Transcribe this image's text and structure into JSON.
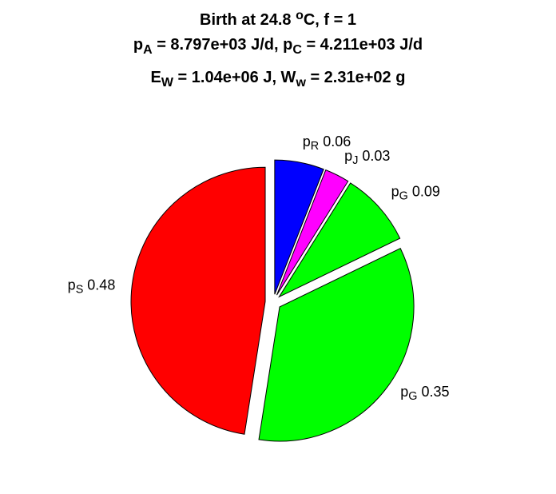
{
  "chart_data": {
    "type": "pie",
    "title": [
      [
        {
          "t": "Birth at 24.8 "
        },
        {
          "t": "o",
          "s": "sup"
        },
        {
          "t": "C, f = 1"
        }
      ],
      [
        {
          "t": "p"
        },
        {
          "t": "A",
          "s": "sub"
        },
        {
          "t": " = 8.797e+03 J/d, p"
        },
        {
          "t": "C",
          "s": "sub"
        },
        {
          "t": " = 4.211e+03 J/d"
        }
      ],
      [
        {
          "t": "E"
        },
        {
          "t": "W",
          "s": "sub"
        },
        {
          "t": " = 1.04e+06 J, W"
        },
        {
          "t": "w",
          "s": "sub"
        },
        {
          "t": " = 2.31e+02 g"
        }
      ]
    ],
    "categories": [
      {
        "main": "p",
        "sub": "R"
      },
      {
        "main": "p",
        "sub": "J"
      },
      {
        "main": "p",
        "sub": "G"
      },
      {
        "main": "p",
        "sub": "G"
      },
      {
        "main": "p",
        "sub": "S"
      }
    ],
    "values": [
      0.06,
      0.03,
      0.09,
      0.35,
      0.48
    ],
    "colors": [
      "#0000ff",
      "#ff00ff",
      "#00ff00",
      "#00ff00",
      "#ff0000"
    ],
    "explode": true
  }
}
